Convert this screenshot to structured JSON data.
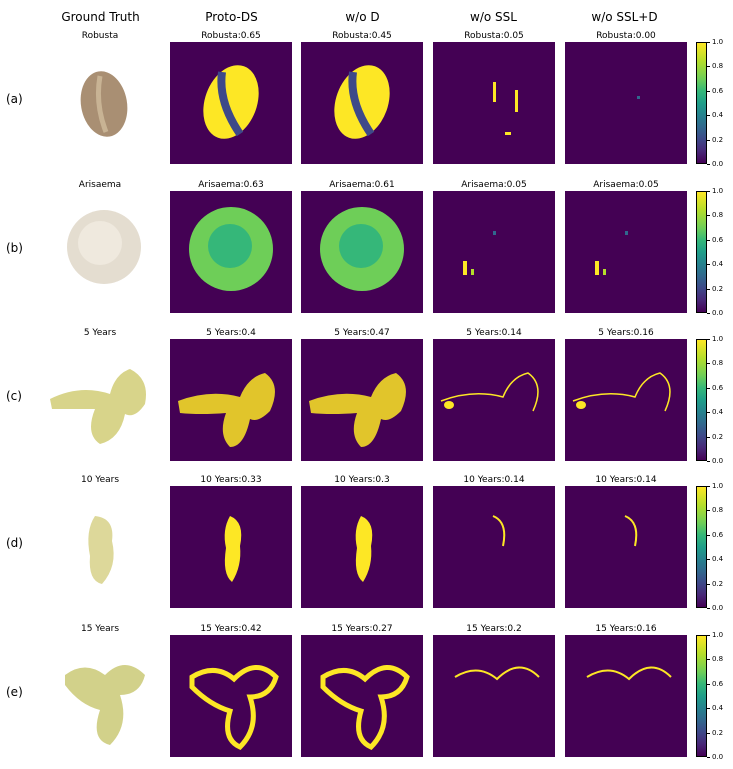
{
  "columns": [
    "Ground Truth",
    "Proto-DS",
    "w/o D",
    "w/o SSL",
    "w/o SSL+D"
  ],
  "rows": [
    {
      "label": "(a)",
      "gt_title": "Robusta",
      "panels": [
        "Robusta:0.65",
        "Robusta:0.45",
        "Robusta:0.05",
        "Robusta:0.00"
      ]
    },
    {
      "label": "(b)",
      "gt_title": "Arisaema",
      "panels": [
        "Arisaema:0.63",
        "Arisaema:0.61",
        "Arisaema:0.05",
        "Arisaema:0.05"
      ]
    },
    {
      "label": "(c)",
      "gt_title": "5 Years",
      "panels": [
        "5 Years:0.4",
        "5 Years:0.47",
        "5 Years:0.14",
        "5 Years:0.16"
      ]
    },
    {
      "label": "(d)",
      "gt_title": "10 Years",
      "panels": [
        "10 Years:0.33",
        "10 Years:0.3",
        "10 Years:0.14",
        "10 Years:0.14"
      ]
    },
    {
      "label": "(e)",
      "gt_title": "15 Years",
      "panels": [
        "15 Years:0.42",
        "15 Years:0.27",
        "15 Years:0.2",
        "15 Years:0.16"
      ]
    }
  ],
  "colorbar_ticks": [
    "0.0",
    "0.2",
    "0.4",
    "0.6",
    "0.8",
    "1.0"
  ],
  "colors": {
    "background": "#440154",
    "highlight": "#fde725",
    "mid": "#35b779"
  }
}
